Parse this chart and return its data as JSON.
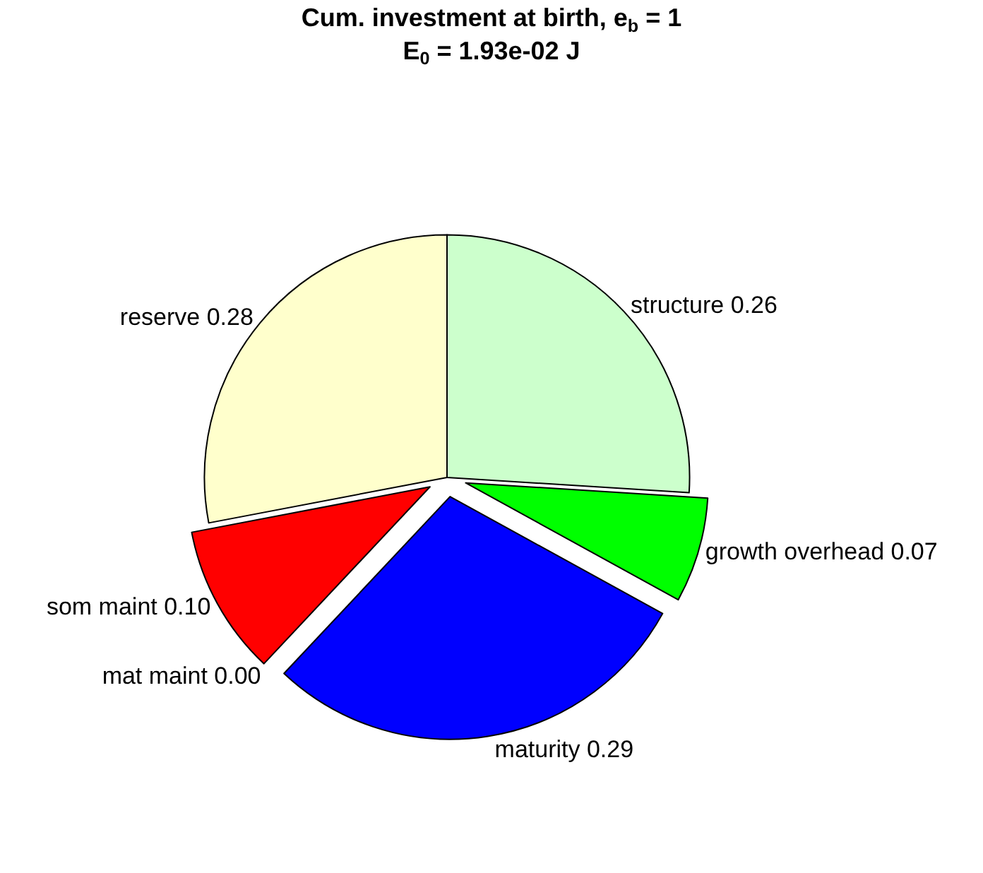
{
  "chart_data": {
    "type": "pie",
    "title": "Cum. investment at birth, e$_{b}$ = 1",
    "subtitle": "E$_{0}$ = 1.93e-02 J",
    "categories": [
      "structure",
      "growth overhead",
      "maturity",
      "mat maint",
      "som maint",
      "reserve"
    ],
    "values": [
      0.26,
      0.07,
      0.29,
      0.0,
      0.1,
      0.28
    ],
    "value_labels": [
      "0.26",
      "0.07",
      "0.29",
      "0.00",
      "0.10",
      "0.28"
    ],
    "colors": [
      "#ccffcc",
      "#00ff00",
      "#0000ff",
      "#ff00ff",
      "#ff0000",
      "#ffffcc"
    ],
    "legend": false
  }
}
